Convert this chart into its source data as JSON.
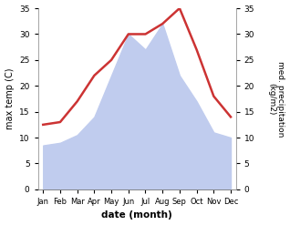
{
  "months": [
    "Jan",
    "Feb",
    "Mar",
    "Apr",
    "May",
    "Jun",
    "Jul",
    "Aug",
    "Sep",
    "Oct",
    "Nov",
    "Dec"
  ],
  "temp": [
    12.5,
    13.0,
    17.0,
    22.0,
    25.0,
    30.0,
    30.0,
    32.0,
    35.0,
    27.0,
    18.0,
    14.0
  ],
  "precip": [
    8.5,
    9.0,
    10.5,
    14.0,
    22.0,
    30.0,
    27.0,
    32.0,
    22.0,
    17.0,
    11.0,
    10.0
  ],
  "temp_color": "#cc3333",
  "precip_fill_color": "#c0ccee",
  "ylabel_left": "max temp (C)",
  "ylabel_right": "med. precipitation\n(kg/m2)",
  "xlabel": "date (month)",
  "ylim": [
    0,
    35
  ],
  "yticks": [
    0,
    5,
    10,
    15,
    20,
    25,
    30,
    35
  ],
  "bg_color": "#ffffff",
  "temp_linewidth": 1.8
}
